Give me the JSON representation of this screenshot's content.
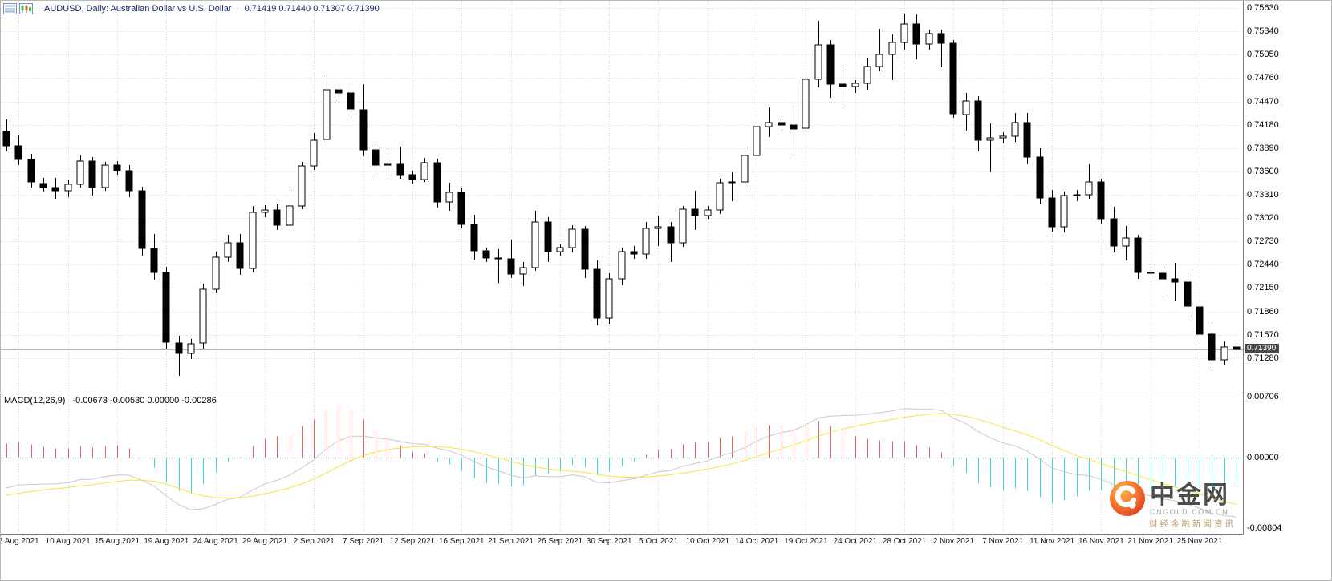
{
  "title_bar": {
    "symbol_info": "AUDUSD, Daily: Australian Dollar vs U.S. Dollar",
    "ohlc": "0.71419 0.71440 0.71307 0.71390",
    "icons": [
      "chart-list-icon",
      "candlestick-chart-icon"
    ]
  },
  "watermark": {
    "brand": "中金网",
    "domain": "CNGOLD.COM.CN",
    "tagline": "财经金融新闻资讯"
  },
  "colors": {
    "bull": "#ffffff",
    "bear": "#000000",
    "wick": "#000000",
    "grid": "#d7d7d7",
    "bid_line": "#b3b3b3",
    "tag_bg": "#4a4a4a",
    "macd_up": "#f25b5b",
    "macd_down": "#35dada",
    "macd_signal": "#f3e53b",
    "macd_main": "#c9c9c9",
    "title_text": "#1c2b6e"
  },
  "chart_data": {
    "type": "candlestick",
    "symbol": "AUDUSD",
    "timeframe": "Daily",
    "description": "Australian Dollar vs U.S. Dollar",
    "price_axis": {
      "top": 0.7572,
      "bottom": 0.7086,
      "last_price": "0.71390",
      "ticks": [
        "0.75630",
        "0.75340",
        "0.75050",
        "0.74760",
        "0.74470",
        "0.74180",
        "0.73890",
        "0.73600",
        "0.73310",
        "0.73020",
        "0.72730",
        "0.72440",
        "0.72150",
        "0.71860",
        "0.71570",
        "0.71280"
      ]
    },
    "macd_axis": {
      "top": 0.0073,
      "bottom": -0.0086,
      "ticks": [
        "0.00706",
        "0.00000",
        "-0.00804"
      ]
    },
    "indicator": {
      "label": "MACD(12,26,9)",
      "values": "-0.00673 -0.00530 0.00000 -0.00286",
      "fast": 12,
      "slow": 26,
      "signal": 9
    },
    "macd_seed": {
      "ema_fast": 0.736,
      "ema_slow": 0.74,
      "signal": -0.0045
    },
    "time_ticks": [
      {
        "i": 1,
        "label": "5 Aug 2021"
      },
      {
        "i": 5,
        "label": "10 Aug 2021"
      },
      {
        "i": 9,
        "label": "15 Aug 2021"
      },
      {
        "i": 13,
        "label": "19 Aug 2021"
      },
      {
        "i": 17,
        "label": "24 Aug 2021"
      },
      {
        "i": 21,
        "label": "29 Aug 2021"
      },
      {
        "i": 25,
        "label": "2 Sep 2021"
      },
      {
        "i": 29,
        "label": "7 Sep 2021"
      },
      {
        "i": 33,
        "label": "12 Sep 2021"
      },
      {
        "i": 37,
        "label": "16 Sep 2021"
      },
      {
        "i": 41,
        "label": "21 Sep 2021"
      },
      {
        "i": 45,
        "label": "26 Sep 2021"
      },
      {
        "i": 49,
        "label": "30 Sep 2021"
      },
      {
        "i": 53,
        "label": "5 Oct 2021"
      },
      {
        "i": 57,
        "label": "10 Oct 2021"
      },
      {
        "i": 61,
        "label": "14 Oct 2021"
      },
      {
        "i": 65,
        "label": "19 Oct 2021"
      },
      {
        "i": 69,
        "label": "24 Oct 2021"
      },
      {
        "i": 73,
        "label": "28 Oct 2021"
      },
      {
        "i": 77,
        "label": "2 Nov 2021"
      },
      {
        "i": 81,
        "label": "7 Nov 2021"
      },
      {
        "i": 85,
        "label": "11 Nov 2021"
      },
      {
        "i": 89,
        "label": "16 Nov 2021"
      },
      {
        "i": 93,
        "label": "21 Nov 2021"
      },
      {
        "i": 97,
        "label": "25 Nov 2021"
      }
    ],
    "candles": [
      [
        0.741,
        0.7425,
        0.7385,
        0.7392
      ],
      [
        0.7392,
        0.7405,
        0.7368,
        0.7375
      ],
      [
        0.7375,
        0.7382,
        0.734,
        0.7347
      ],
      [
        0.7345,
        0.7352,
        0.7335,
        0.734
      ],
      [
        0.734,
        0.7352,
        0.7326,
        0.7336
      ],
      [
        0.7336,
        0.735,
        0.7328,
        0.7344
      ],
      [
        0.7344,
        0.738,
        0.734,
        0.7373
      ],
      [
        0.7373,
        0.7378,
        0.733,
        0.734
      ],
      [
        0.734,
        0.7372,
        0.7336,
        0.7368
      ],
      [
        0.7368,
        0.7373,
        0.7356,
        0.7361
      ],
      [
        0.7361,
        0.7368,
        0.7328,
        0.7336
      ],
      [
        0.7336,
        0.7341,
        0.7255,
        0.7264
      ],
      [
        0.7264,
        0.7282,
        0.7225,
        0.7234
      ],
      [
        0.7234,
        0.7241,
        0.714,
        0.7147
      ],
      [
        0.7147,
        0.7156,
        0.7106,
        0.7134
      ],
      [
        0.7134,
        0.7152,
        0.7127,
        0.7146
      ],
      [
        0.7146,
        0.722,
        0.714,
        0.7213
      ],
      [
        0.7213,
        0.726,
        0.7209,
        0.7253
      ],
      [
        0.7253,
        0.7281,
        0.7247,
        0.7271
      ],
      [
        0.7271,
        0.7282,
        0.7231,
        0.7239
      ],
      [
        0.7239,
        0.7317,
        0.7234,
        0.7309
      ],
      [
        0.7309,
        0.7318,
        0.7303,
        0.7312
      ],
      [
        0.7312,
        0.7319,
        0.7287,
        0.7293
      ],
      [
        0.7293,
        0.7341,
        0.7289,
        0.7317
      ],
      [
        0.7317,
        0.7372,
        0.7313,
        0.7367
      ],
      [
        0.7367,
        0.7408,
        0.7362,
        0.7399
      ],
      [
        0.7399,
        0.7478,
        0.7395,
        0.7461
      ],
      [
        0.7461,
        0.7469,
        0.7452,
        0.7457
      ],
      [
        0.7457,
        0.7462,
        0.7427,
        0.7437
      ],
      [
        0.7437,
        0.7468,
        0.7379,
        0.7387
      ],
      [
        0.7387,
        0.7394,
        0.7352,
        0.7368
      ],
      [
        0.7368,
        0.7386,
        0.7354,
        0.7369
      ],
      [
        0.7369,
        0.7391,
        0.7351,
        0.7356
      ],
      [
        0.7356,
        0.7361,
        0.7345,
        0.735
      ],
      [
        0.735,
        0.7377,
        0.7347,
        0.7371
      ],
      [
        0.7371,
        0.7376,
        0.7315,
        0.7322
      ],
      [
        0.7322,
        0.7346,
        0.7311,
        0.7334
      ],
      [
        0.7334,
        0.734,
        0.7289,
        0.7294
      ],
      [
        0.7294,
        0.7306,
        0.725,
        0.7261
      ],
      [
        0.7261,
        0.7265,
        0.7247,
        0.7252
      ],
      [
        0.7252,
        0.7263,
        0.7221,
        0.7251
      ],
      [
        0.7251,
        0.7275,
        0.7227,
        0.7232
      ],
      [
        0.7232,
        0.7247,
        0.7217,
        0.724
      ],
      [
        0.724,
        0.7311,
        0.7236,
        0.7297
      ],
      [
        0.7297,
        0.7303,
        0.7247,
        0.726
      ],
      [
        0.726,
        0.7269,
        0.7255,
        0.7265
      ],
      [
        0.7265,
        0.7293,
        0.7259,
        0.7288
      ],
      [
        0.7288,
        0.7292,
        0.7227,
        0.7238
      ],
      [
        0.7238,
        0.7249,
        0.7169,
        0.7177
      ],
      [
        0.7177,
        0.7233,
        0.7171,
        0.7226
      ],
      [
        0.7226,
        0.7265,
        0.7218,
        0.726
      ],
      [
        0.726,
        0.7267,
        0.7251,
        0.7257
      ],
      [
        0.7257,
        0.7297,
        0.7251,
        0.7289
      ],
      [
        0.7289,
        0.7305,
        0.7267,
        0.7291
      ],
      [
        0.7291,
        0.7297,
        0.7247,
        0.7271
      ],
      [
        0.7271,
        0.7317,
        0.7266,
        0.7313
      ],
      [
        0.7313,
        0.7336,
        0.7287,
        0.7305
      ],
      [
        0.7305,
        0.7317,
        0.7301,
        0.7312
      ],
      [
        0.7312,
        0.7351,
        0.7307,
        0.7346
      ],
      [
        0.7346,
        0.7359,
        0.7323,
        0.7347
      ],
      [
        0.7347,
        0.7385,
        0.7339,
        0.738
      ],
      [
        0.738,
        0.7421,
        0.7375,
        0.7416
      ],
      [
        0.7416,
        0.744,
        0.7403,
        0.7421
      ],
      [
        0.7421,
        0.7429,
        0.7411,
        0.7418
      ],
      [
        0.7418,
        0.7439,
        0.7379,
        0.7413
      ],
      [
        0.7413,
        0.7477,
        0.7409,
        0.7474
      ],
      [
        0.7474,
        0.7547,
        0.7464,
        0.7517
      ],
      [
        0.7517,
        0.7523,
        0.7451,
        0.7468
      ],
      [
        0.7468,
        0.7489,
        0.7439,
        0.7465
      ],
      [
        0.7465,
        0.7473,
        0.7457,
        0.7469
      ],
      [
        0.7469,
        0.7501,
        0.7461,
        0.749
      ],
      [
        0.749,
        0.7537,
        0.7484,
        0.7505
      ],
      [
        0.7505,
        0.753,
        0.7473,
        0.752
      ],
      [
        0.752,
        0.7556,
        0.7511,
        0.7543
      ],
      [
        0.7543,
        0.7555,
        0.7499,
        0.7518
      ],
      [
        0.7518,
        0.7536,
        0.7511,
        0.7531
      ],
      [
        0.7531,
        0.7536,
        0.7489,
        0.7519
      ],
      [
        0.7519,
        0.7523,
        0.7427,
        0.7431
      ],
      [
        0.7431,
        0.7457,
        0.7411,
        0.7448
      ],
      [
        0.7448,
        0.7453,
        0.7385,
        0.7399
      ],
      [
        0.7399,
        0.742,
        0.7359,
        0.7402
      ],
      [
        0.7402,
        0.7409,
        0.7395,
        0.7404
      ],
      [
        0.7404,
        0.7433,
        0.7397,
        0.7421
      ],
      [
        0.7421,
        0.7433,
        0.7369,
        0.7378
      ],
      [
        0.7378,
        0.7389,
        0.7319,
        0.7327
      ],
      [
        0.7327,
        0.7337,
        0.7285,
        0.7291
      ],
      [
        0.7291,
        0.7335,
        0.7284,
        0.733
      ],
      [
        0.733,
        0.7337,
        0.7323,
        0.7331
      ],
      [
        0.7331,
        0.7369,
        0.7326,
        0.7347
      ],
      [
        0.7347,
        0.7351,
        0.7295,
        0.7301
      ],
      [
        0.7301,
        0.7316,
        0.7259,
        0.7267
      ],
      [
        0.7267,
        0.7292,
        0.7249,
        0.7277
      ],
      [
        0.7277,
        0.7281,
        0.7226,
        0.7234
      ],
      [
        0.7234,
        0.7241,
        0.7225,
        0.7233
      ],
      [
        0.7233,
        0.7245,
        0.7204,
        0.7226
      ],
      [
        0.7226,
        0.7246,
        0.7199,
        0.7222
      ],
      [
        0.7222,
        0.7233,
        0.7179,
        0.7192
      ],
      [
        0.7192,
        0.7199,
        0.7149,
        0.7158
      ],
      [
        0.7158,
        0.7169,
        0.7112,
        0.7126
      ],
      [
        0.7126,
        0.7149,
        0.7119,
        0.7142
      ],
      [
        0.71419,
        0.7144,
        0.71307,
        0.7139
      ]
    ]
  }
}
